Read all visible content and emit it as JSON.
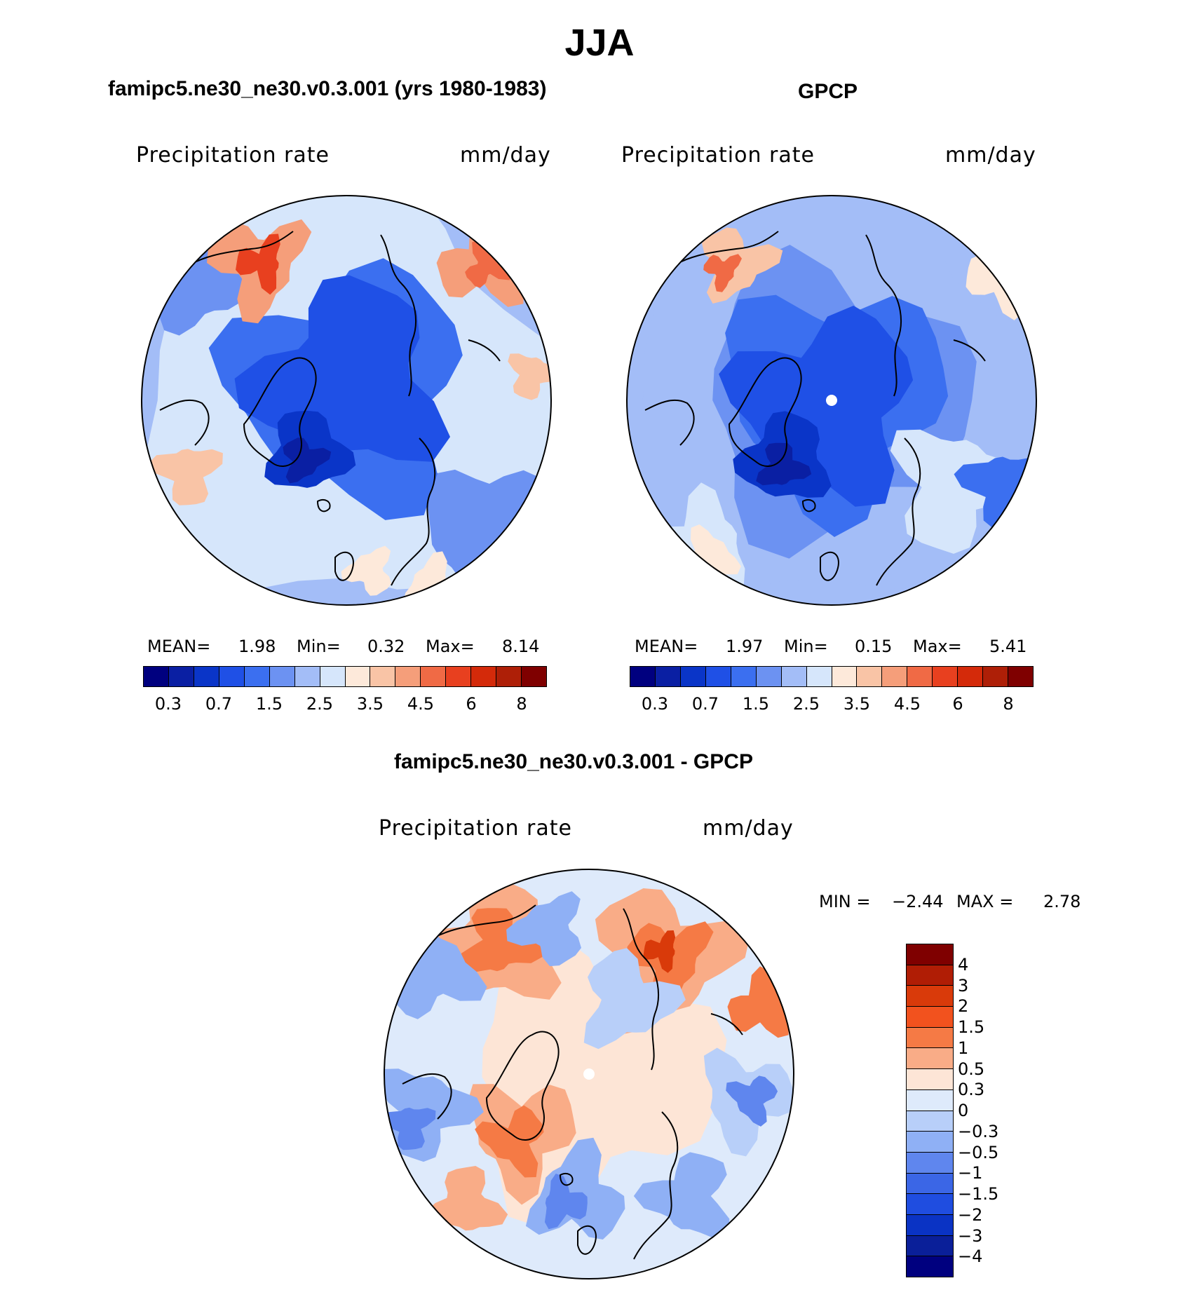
{
  "figure": {
    "title": "JJA"
  },
  "colors": {
    "abs_scale": [
      "#00007f",
      "#0a1fa3",
      "#0a35c8",
      "#1f50e6",
      "#3b6ff0",
      "#6c92f2",
      "#a3bdf7",
      "#d6e6fb",
      "#fde9da",
      "#f9c4a6",
      "#f59e7a",
      "#f06a45",
      "#e8401f",
      "#d42a0a",
      "#ae1f07",
      "#7f0000"
    ],
    "diff_scale": [
      "#7f0000",
      "#b01d05",
      "#d93a0a",
      "#f2521e",
      "#f57a45",
      "#f9ac87",
      "#fde5d6",
      "#deeafb",
      "#b8cff9",
      "#8fb0f5",
      "#5f86ee",
      "#3b66e6",
      "#1f4de0",
      "#0a33c4",
      "#0a1f99",
      "#00007f"
    ]
  },
  "chart_data": [
    {
      "type": "heatmap",
      "projection": "north polar stereographic",
      "panel_title": "famipc5.ne30_ne30.v0.3.001 (yrs 1980-1983)",
      "variable": "Precipitation rate",
      "units": "mm/day",
      "stats": {
        "mean_label": "MEAN=",
        "mean": "1.98",
        "min_label": "Min=",
        "min": "0.32",
        "max_label": "Max=",
        "max": "8.14"
      },
      "colorbar_ticks": [
        "0.3",
        "0.7",
        "1.5",
        "2.5",
        "3.5",
        "4.5",
        "6",
        "8"
      ],
      "colorbar_orientation": "horizontal",
      "levels": 16
    },
    {
      "type": "heatmap",
      "projection": "north polar stereographic",
      "panel_title": "GPCP",
      "variable": "Precipitation rate",
      "units": "mm/day",
      "stats": {
        "mean_label": "MEAN=",
        "mean": "1.97",
        "min_label": "Min=",
        "min": "0.15",
        "max_label": "Max=",
        "max": "5.41"
      },
      "colorbar_ticks": [
        "0.3",
        "0.7",
        "1.5",
        "2.5",
        "3.5",
        "4.5",
        "6",
        "8"
      ],
      "colorbar_orientation": "horizontal",
      "levels": 16
    },
    {
      "type": "heatmap",
      "projection": "north polar stereographic",
      "panel_title": "famipc5.ne30_ne30.v0.3.001 - GPCP",
      "variable": "Precipitation rate",
      "units": "mm/day",
      "stats": {
        "min_label": "MIN =",
        "min": "−2.44",
        "max_label": "MAX =",
        "max": "2.78"
      },
      "colorbar_ticks": [
        "4",
        "3",
        "2",
        "1.5",
        "1",
        "0.5",
        "0.3",
        "0",
        "−0.3",
        "−0.5",
        "−1",
        "−1.5",
        "−2",
        "−3",
        "−4"
      ],
      "colorbar_orientation": "vertical",
      "levels": 16
    }
  ]
}
